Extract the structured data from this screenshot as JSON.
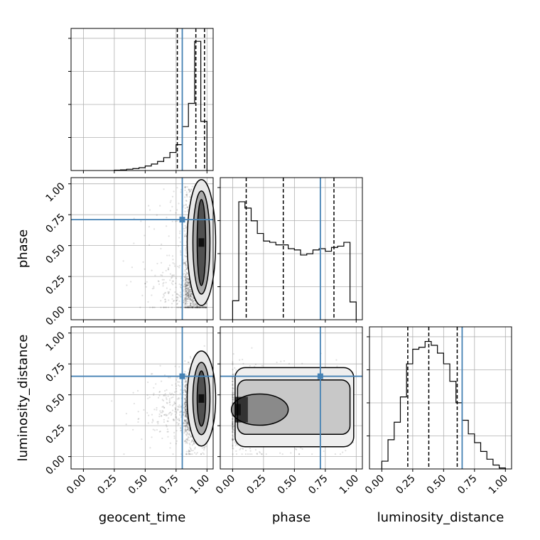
{
  "chart_data": {
    "type": "corner",
    "parameters": [
      "geocent_time",
      "phase",
      "luminosity_distance"
    ],
    "truths": {
      "geocent_time": 0.8,
      "phase": 0.71,
      "luminosity_distance": 0.65
    },
    "truth_color": "#4682b4",
    "tick_labels": [
      "0.00",
      "0.25",
      "0.50",
      "0.75",
      "1.00"
    ],
    "axis_ranges": {
      "geocent_time": [
        -0.1,
        1.05
      ],
      "phase": [
        -0.1,
        1.05
      ],
      "luminosity_distance": [
        -0.1,
        1.05
      ]
    },
    "grid": true,
    "marginals": [
      {
        "parameter": "geocent_time",
        "bin_edges": [
          0.25,
          0.3,
          0.35,
          0.4,
          0.45,
          0.5,
          0.55,
          0.6,
          0.65,
          0.7,
          0.75,
          0.8,
          0.85,
          0.9,
          0.95,
          1.0
        ],
        "values": [
          0.3,
          0.5,
          1,
          1.5,
          2.2,
          3.5,
          5,
          7,
          10,
          14,
          20,
          34,
          52,
          100,
          38
        ],
        "ymax": 110,
        "quantiles": [
          0.76,
          0.91,
          0.98
        ]
      },
      {
        "parameter": "phase",
        "bin_edges": [
          0,
          0.05,
          0.1,
          0.15,
          0.2,
          0.25,
          0.3,
          0.35,
          0.4,
          0.45,
          0.5,
          0.55,
          0.6,
          0.65,
          0.7,
          0.75,
          0.8,
          0.85,
          0.9,
          0.95,
          1.0
        ],
        "values": [
          15,
          93,
          88,
          78,
          68,
          62,
          61,
          59,
          59,
          56,
          55,
          51,
          52,
          55,
          56,
          54,
          57,
          58,
          61,
          14
        ],
        "ymax": 112,
        "quantiles": [
          0.11,
          0.41,
          0.82
        ]
      },
      {
        "parameter": "luminosity_distance",
        "bin_edges": [
          0,
          0.05,
          0.1,
          0.15,
          0.2,
          0.25,
          0.3,
          0.35,
          0.4,
          0.45,
          0.5,
          0.55,
          0.6,
          0.65,
          0.7,
          0.75,
          0.8,
          0.85,
          0.9,
          0.95,
          1.0
        ],
        "values": [
          8,
          30,
          48,
          74,
          108,
          123,
          125,
          131,
          127,
          119,
          108,
          90,
          68,
          50,
          36,
          27,
          18,
          10,
          4,
          1
        ],
        "ymax": 146,
        "quantiles": [
          0.21,
          0.38,
          0.61
        ]
      }
    ]
  }
}
